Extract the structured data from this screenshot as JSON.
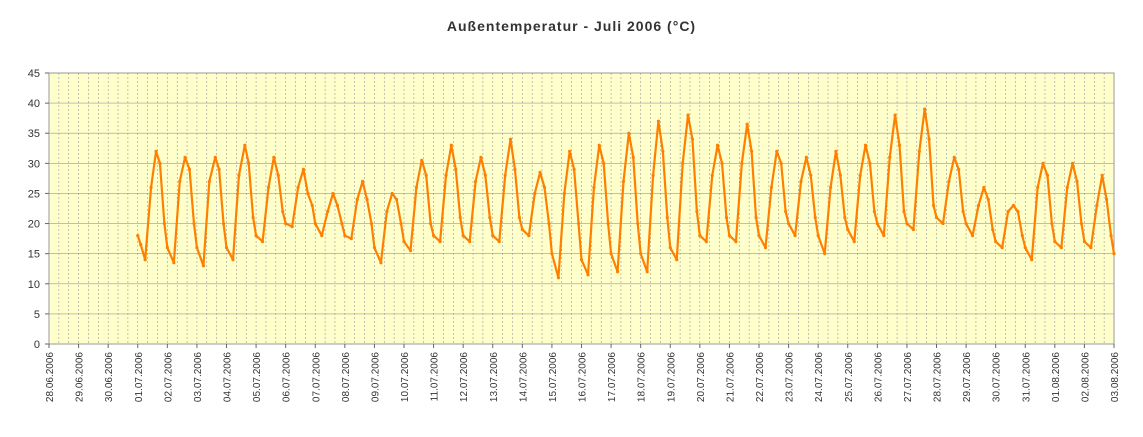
{
  "chart_data": {
    "type": "line",
    "title": "Außentemperatur - Juli 2006 (°C)",
    "xlabel": "",
    "ylabel": "",
    "ylim": [
      0,
      45
    ],
    "yticks": [
      "0",
      "5",
      "10",
      "15",
      "20",
      "25",
      "30",
      "35",
      "40",
      "45"
    ],
    "x_tick_labels": [
      "28.06.2006",
      "29.06.2006",
      "30.06.2006",
      "01.07.2006",
      "02.07.2006",
      "03.07.2006",
      "04.07.2006",
      "05.07.2006",
      "06.07.2006",
      "07.07.2006",
      "08.07.2006",
      "09.07.2006",
      "10.07.2006",
      "11.07.2006",
      "12.07.2006",
      "13.07.2006",
      "14.07.2006",
      "15.07.2006",
      "16.07.2006",
      "17.07.2006",
      "18.07.2006",
      "19.07.2006",
      "20.07.2006",
      "21.07.2006",
      "22.07.2006",
      "23.07.2006",
      "24.07.2006",
      "25.07.2006",
      "26.07.2006",
      "27.07.2006",
      "28.07.2006",
      "29.07.2006",
      "30.07.2006",
      "31.07.2006",
      "01.08.2006",
      "02.08.2006",
      "03.08.2006"
    ],
    "grid": true,
    "plot_background": "#ffffcc",
    "line_color": "#ff8000",
    "series": [
      {
        "values": [
          {
            "day": 3.0,
            "t": 18.0
          },
          {
            "day": 3.1,
            "t": 16.5
          },
          {
            "day": 3.25,
            "t": 14.0
          },
          {
            "day": 3.45,
            "t": 26
          },
          {
            "day": 3.62,
            "t": 32.0
          },
          {
            "day": 3.75,
            "t": 30
          },
          {
            "day": 3.9,
            "t": 20
          },
          {
            "day": 4.0,
            "t": 16.0
          },
          {
            "day": 4.22,
            "t": 13.5
          },
          {
            "day": 4.42,
            "t": 27
          },
          {
            "day": 4.6,
            "t": 31.0
          },
          {
            "day": 4.75,
            "t": 29
          },
          {
            "day": 4.9,
            "t": 20
          },
          {
            "day": 5.0,
            "t": 16.0
          },
          {
            "day": 5.22,
            "t": 13.0
          },
          {
            "day": 5.42,
            "t": 27
          },
          {
            "day": 5.62,
            "t": 31.0
          },
          {
            "day": 5.75,
            "t": 29
          },
          {
            "day": 5.9,
            "t": 20
          },
          {
            "day": 6.0,
            "t": 16.0
          },
          {
            "day": 6.22,
            "t": 14.0
          },
          {
            "day": 6.42,
            "t": 28
          },
          {
            "day": 6.62,
            "t": 33.0
          },
          {
            "day": 6.75,
            "t": 30
          },
          {
            "day": 6.9,
            "t": 21
          },
          {
            "day": 7.0,
            "t": 18.0
          },
          {
            "day": 7.22,
            "t": 17.0
          },
          {
            "day": 7.42,
            "t": 26
          },
          {
            "day": 7.6,
            "t": 31.0
          },
          {
            "day": 7.75,
            "t": 28
          },
          {
            "day": 7.9,
            "t": 22
          },
          {
            "day": 8.0,
            "t": 20.0
          },
          {
            "day": 8.22,
            "t": 19.5
          },
          {
            "day": 8.42,
            "t": 26
          },
          {
            "day": 8.6,
            "t": 29.0
          },
          {
            "day": 8.75,
            "t": 25
          },
          {
            "day": 8.9,
            "t": 23
          },
          {
            "day": 9.0,
            "t": 20.0
          },
          {
            "day": 9.22,
            "t": 18.0
          },
          {
            "day": 9.42,
            "t": 22
          },
          {
            "day": 9.6,
            "t": 25.0
          },
          {
            "day": 9.75,
            "t": 23
          },
          {
            "day": 9.9,
            "t": 20
          },
          {
            "day": 10.0,
            "t": 18.0
          },
          {
            "day": 10.22,
            "t": 17.5
          },
          {
            "day": 10.42,
            "t": 24
          },
          {
            "day": 10.6,
            "t": 27.0
          },
          {
            "day": 10.75,
            "t": 24
          },
          {
            "day": 10.9,
            "t": 20
          },
          {
            "day": 11.0,
            "t": 16.0
          },
          {
            "day": 11.22,
            "t": 13.5
          },
          {
            "day": 11.42,
            "t": 22
          },
          {
            "day": 11.6,
            "t": 25.0
          },
          {
            "day": 11.75,
            "t": 24
          },
          {
            "day": 11.9,
            "t": 20
          },
          {
            "day": 12.0,
            "t": 17.0
          },
          {
            "day": 12.22,
            "t": 15.5
          },
          {
            "day": 12.42,
            "t": 26
          },
          {
            "day": 12.6,
            "t": 30.5
          },
          {
            "day": 12.75,
            "t": 28
          },
          {
            "day": 12.9,
            "t": 20
          },
          {
            "day": 13.0,
            "t": 18.0
          },
          {
            "day": 13.22,
            "t": 17.0
          },
          {
            "day": 13.42,
            "t": 28
          },
          {
            "day": 13.6,
            "t": 33.0
          },
          {
            "day": 13.75,
            "t": 29
          },
          {
            "day": 13.9,
            "t": 21
          },
          {
            "day": 14.0,
            "t": 18.0
          },
          {
            "day": 14.22,
            "t": 17.0
          },
          {
            "day": 14.42,
            "t": 27
          },
          {
            "day": 14.6,
            "t": 31.0
          },
          {
            "day": 14.75,
            "t": 28
          },
          {
            "day": 14.9,
            "t": 21
          },
          {
            "day": 15.0,
            "t": 18.0
          },
          {
            "day": 15.22,
            "t": 17.0
          },
          {
            "day": 15.42,
            "t": 28
          },
          {
            "day": 15.6,
            "t": 34.0
          },
          {
            "day": 15.75,
            "t": 29
          },
          {
            "day": 15.9,
            "t": 21
          },
          {
            "day": 16.0,
            "t": 19.0
          },
          {
            "day": 16.22,
            "t": 18.0
          },
          {
            "day": 16.42,
            "t": 25
          },
          {
            "day": 16.6,
            "t": 28.5
          },
          {
            "day": 16.75,
            "t": 26
          },
          {
            "day": 16.9,
            "t": 20
          },
          {
            "day": 17.0,
            "t": 15.0
          },
          {
            "day": 17.22,
            "t": 11.0
          },
          {
            "day": 17.42,
            "t": 25
          },
          {
            "day": 17.6,
            "t": 32.0
          },
          {
            "day": 17.75,
            "t": 29
          },
          {
            "day": 17.9,
            "t": 20
          },
          {
            "day": 18.0,
            "t": 14.0
          },
          {
            "day": 18.22,
            "t": 11.5
          },
          {
            "day": 18.42,
            "t": 26
          },
          {
            "day": 18.6,
            "t": 33.0
          },
          {
            "day": 18.75,
            "t": 30
          },
          {
            "day": 18.9,
            "t": 20
          },
          {
            "day": 19.0,
            "t": 15.0
          },
          {
            "day": 19.22,
            "t": 12.0
          },
          {
            "day": 19.42,
            "t": 27
          },
          {
            "day": 19.6,
            "t": 35.0
          },
          {
            "day": 19.75,
            "t": 31
          },
          {
            "day": 19.9,
            "t": 20
          },
          {
            "day": 20.0,
            "t": 15.0
          },
          {
            "day": 20.22,
            "t": 12.0
          },
          {
            "day": 20.42,
            "t": 28
          },
          {
            "day": 20.6,
            "t": 37.0
          },
          {
            "day": 20.75,
            "t": 32
          },
          {
            "day": 20.9,
            "t": 21
          },
          {
            "day": 21.0,
            "t": 16.0
          },
          {
            "day": 21.22,
            "t": 14.0
          },
          {
            "day": 21.42,
            "t": 30
          },
          {
            "day": 21.6,
            "t": 38.0
          },
          {
            "day": 21.75,
            "t": 34
          },
          {
            "day": 21.9,
            "t": 22
          },
          {
            "day": 22.0,
            "t": 18.0
          },
          {
            "day": 22.22,
            "t": 17.0
          },
          {
            "day": 22.42,
            "t": 28
          },
          {
            "day": 22.6,
            "t": 33.0
          },
          {
            "day": 22.75,
            "t": 30
          },
          {
            "day": 22.9,
            "t": 21
          },
          {
            "day": 23.0,
            "t": 18.0
          },
          {
            "day": 23.22,
            "t": 17.0
          },
          {
            "day": 23.42,
            "t": 30
          },
          {
            "day": 23.6,
            "t": 36.5
          },
          {
            "day": 23.75,
            "t": 32
          },
          {
            "day": 23.9,
            "t": 21
          },
          {
            "day": 24.0,
            "t": 18.0
          },
          {
            "day": 24.22,
            "t": 16.0
          },
          {
            "day": 24.42,
            "t": 26
          },
          {
            "day": 24.6,
            "t": 32.0
          },
          {
            "day": 24.75,
            "t": 30
          },
          {
            "day": 24.9,
            "t": 22
          },
          {
            "day": 25.0,
            "t": 20.0
          },
          {
            "day": 25.22,
            "t": 18.0
          },
          {
            "day": 25.42,
            "t": 27
          },
          {
            "day": 25.6,
            "t": 31.0
          },
          {
            "day": 25.75,
            "t": 28
          },
          {
            "day": 25.9,
            "t": 21
          },
          {
            "day": 26.0,
            "t": 18.0
          },
          {
            "day": 26.22,
            "t": 15.0
          },
          {
            "day": 26.42,
            "t": 26
          },
          {
            "day": 26.6,
            "t": 32.0
          },
          {
            "day": 26.75,
            "t": 28
          },
          {
            "day": 26.9,
            "t": 21
          },
          {
            "day": 27.0,
            "t": 19.0
          },
          {
            "day": 27.22,
            "t": 17.0
          },
          {
            "day": 27.42,
            "t": 28
          },
          {
            "day": 27.6,
            "t": 33.0
          },
          {
            "day": 27.75,
            "t": 30
          },
          {
            "day": 27.9,
            "t": 22
          },
          {
            "day": 28.0,
            "t": 20.0
          },
          {
            "day": 28.22,
            "t": 18.0
          },
          {
            "day": 28.42,
            "t": 31
          },
          {
            "day": 28.6,
            "t": 38.0
          },
          {
            "day": 28.75,
            "t": 33
          },
          {
            "day": 28.9,
            "t": 22
          },
          {
            "day": 29.0,
            "t": 20.0
          },
          {
            "day": 29.22,
            "t": 19.0
          },
          {
            "day": 29.42,
            "t": 32
          },
          {
            "day": 29.6,
            "t": 39.0
          },
          {
            "day": 29.75,
            "t": 34
          },
          {
            "day": 29.9,
            "t": 23
          },
          {
            "day": 30.0,
            "t": 21.0
          },
          {
            "day": 30.22,
            "t": 20.0
          },
          {
            "day": 30.42,
            "t": 27
          },
          {
            "day": 30.6,
            "t": 31.0
          },
          {
            "day": 30.75,
            "t": 29
          },
          {
            "day": 30.9,
            "t": 22
          },
          {
            "day": 31.0,
            "t": 20.0
          },
          {
            "day": 31.22,
            "t": 18.0
          },
          {
            "day": 31.42,
            "t": 23
          },
          {
            "day": 31.6,
            "t": 26.0
          },
          {
            "day": 31.75,
            "t": 24
          },
          {
            "day": 31.9,
            "t": 19
          },
          {
            "day": 32.0,
            "t": 17.0
          },
          {
            "day": 32.22,
            "t": 16.0
          },
          {
            "day": 32.42,
            "t": 22
          },
          {
            "day": 32.6,
            "t": 23.0
          },
          {
            "day": 32.75,
            "t": 22
          },
          {
            "day": 32.9,
            "t": 18
          },
          {
            "day": 33.0,
            "t": 16.0
          },
          {
            "day": 33.22,
            "t": 14.0
          },
          {
            "day": 33.42,
            "t": 26
          },
          {
            "day": 33.6,
            "t": 30.0
          },
          {
            "day": 33.75,
            "t": 28
          },
          {
            "day": 33.9,
            "t": 20
          },
          {
            "day": 34.0,
            "t": 17.0
          },
          {
            "day": 34.22,
            "t": 16.0
          },
          {
            "day": 34.42,
            "t": 26
          },
          {
            "day": 34.6,
            "t": 30.0
          },
          {
            "day": 34.75,
            "t": 27
          },
          {
            "day": 34.9,
            "t": 20
          },
          {
            "day": 35.0,
            "t": 17.0
          },
          {
            "day": 35.22,
            "t": 16.0
          },
          {
            "day": 35.42,
            "t": 23
          },
          {
            "day": 35.6,
            "t": 28.0
          },
          {
            "day": 35.75,
            "t": 24
          },
          {
            "day": 35.9,
            "t": 18
          },
          {
            "day": 36.0,
            "t": 15.0
          }
        ]
      }
    ]
  }
}
